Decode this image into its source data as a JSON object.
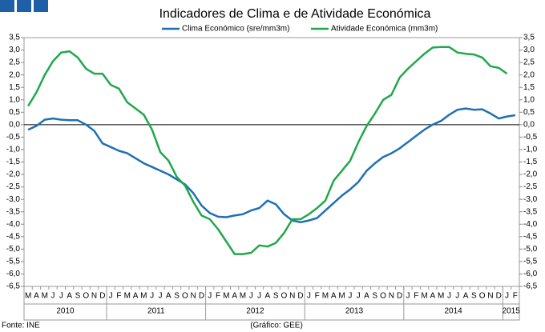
{
  "chart_data": {
    "type": "line",
    "title": "Indicadores de Clima e de Atividade Económica",
    "source": "Fonte: INE",
    "credit": "(Gráfico: GEE)",
    "groups": [
      {
        "name": "2010",
        "categories": [
          "M",
          "A",
          "M",
          "J",
          "J",
          "A",
          "S",
          "O",
          "N",
          "D"
        ]
      },
      {
        "name": "2011",
        "categories": [
          "J",
          "F",
          "M",
          "A",
          "M",
          "J",
          "J",
          "A",
          "S",
          "O",
          "N",
          "D"
        ]
      },
      {
        "name": "2012",
        "categories": [
          "J",
          "F",
          "M",
          "A",
          "M",
          "J",
          "J",
          "A",
          "S",
          "O",
          "N",
          "D"
        ]
      },
      {
        "name": "2013",
        "categories": [
          "J",
          "F",
          "M",
          "A",
          "M",
          "J",
          "J",
          "A",
          "S",
          "O",
          "N",
          "D"
        ]
      },
      {
        "name": "2014",
        "categories": [
          "J",
          "F",
          "M",
          "A",
          "M",
          "J",
          "J",
          "A",
          "S",
          "O",
          "N",
          "D"
        ]
      },
      {
        "name": "2015",
        "categories": [
          "J",
          "F"
        ]
      }
    ],
    "series": [
      {
        "name": "Clima Económico (sre/mm3m)",
        "color": "#1f6fb5",
        "values": [
          -0.2,
          -0.05,
          0.2,
          0.25,
          0.2,
          0.18,
          0.18,
          0.0,
          -0.25,
          -0.75,
          -0.9,
          -1.05,
          -1.15,
          -1.35,
          -1.55,
          -1.7,
          -1.85,
          -2.0,
          -2.2,
          -2.4,
          -2.75,
          -3.25,
          -3.55,
          -3.7,
          -3.72,
          -3.65,
          -3.6,
          -3.45,
          -3.35,
          -3.05,
          -3.2,
          -3.6,
          -3.85,
          -3.92,
          -3.85,
          -3.75,
          -3.45,
          -3.15,
          -2.85,
          -2.6,
          -2.3,
          -1.85,
          -1.55,
          -1.3,
          -1.15,
          -0.95,
          -0.7,
          -0.45,
          -0.2,
          0.0,
          0.15,
          0.4,
          0.6,
          0.65,
          0.6,
          0.62,
          0.45,
          0.25,
          0.33,
          0.38
        ]
      },
      {
        "name": "Atividade Económica (mm3m)",
        "color": "#20a84a",
        "values": [
          0.75,
          1.3,
          2.0,
          2.55,
          2.9,
          2.95,
          2.7,
          2.25,
          2.05,
          2.05,
          1.6,
          1.45,
          0.9,
          0.65,
          0.4,
          -0.2,
          -1.1,
          -1.45,
          -2.1,
          -2.45,
          -3.1,
          -3.65,
          -3.8,
          -4.2,
          -4.7,
          -5.2,
          -5.2,
          -5.15,
          -4.85,
          -4.9,
          -4.75,
          -4.35,
          -3.8,
          -3.8,
          -3.6,
          -3.35,
          -3.05,
          -2.25,
          -1.85,
          -1.45,
          -0.7,
          -0.05,
          0.45,
          1.0,
          1.2,
          1.9,
          2.25,
          2.55,
          2.85,
          3.1,
          3.12,
          3.12,
          2.9,
          2.85,
          2.82,
          2.7,
          2.35,
          2.28,
          2.05,
          null
        ]
      }
    ],
    "ylim": [
      -6.5,
      3.5
    ],
    "yticks": [
      {
        "value": 3.5,
        "label": "3,5"
      },
      {
        "value": 3,
        "label": "3,0"
      },
      {
        "value": 2.5,
        "label": "2,5"
      },
      {
        "value": 2,
        "label": "2,0"
      },
      {
        "value": 1.5,
        "label": "1,5"
      },
      {
        "value": 1,
        "label": "1,0"
      },
      {
        "value": 0.5,
        "label": "0,5"
      },
      {
        "value": 0,
        "label": "0,0"
      },
      {
        "value": -0.5,
        "label": "-0,5"
      },
      {
        "value": -1,
        "label": "-1,0"
      },
      {
        "value": -1.5,
        "label": "-1,5"
      },
      {
        "value": -2,
        "label": "-2,0"
      },
      {
        "value": -2.5,
        "label": "-2,5"
      },
      {
        "value": -3,
        "label": "-3,0"
      },
      {
        "value": -3.5,
        "label": "-3,5"
      },
      {
        "value": -4,
        "label": "-4,0"
      },
      {
        "value": -4.5,
        "label": "-4,5"
      },
      {
        "value": -5,
        "label": "-5,0"
      },
      {
        "value": -5.5,
        "label": "-5,5"
      },
      {
        "value": -6,
        "label": "-6,0"
      },
      {
        "value": -6.5,
        "label": "-6,5"
      }
    ],
    "y2lim": [
      -6.5,
      3.5
    ],
    "y2ticks": [
      {
        "value": 3.5,
        "label": "3,5"
      },
      {
        "value": 3,
        "label": "3,0"
      },
      {
        "value": 2.5,
        "label": "2,5"
      },
      {
        "value": 2,
        "label": "2,0"
      },
      {
        "value": 1.5,
        "label": "1,5"
      },
      {
        "value": 1,
        "label": "1,0"
      },
      {
        "value": 0.5,
        "label": "0,5"
      },
      {
        "value": 0,
        "label": "0,0"
      },
      {
        "value": -0.5,
        "label": "-0,5"
      },
      {
        "value": -1,
        "label": "-1,0"
      },
      {
        "value": -1.5,
        "label": "-1,5"
      },
      {
        "value": -2,
        "label": "-2,0"
      },
      {
        "value": -2.5,
        "label": "-2,5"
      },
      {
        "value": -3,
        "label": "-3,0"
      },
      {
        "value": -3.5,
        "label": "-3,5"
      },
      {
        "value": -4,
        "label": "-4,0"
      },
      {
        "value": -4.5,
        "label": "-4,5"
      },
      {
        "value": -5,
        "label": "-5,0"
      },
      {
        "value": -5.5,
        "label": "-5,5"
      },
      {
        "value": -6,
        "label": "-6,0"
      },
      {
        "value": -6.5,
        "label": "-6,5"
      }
    ]
  }
}
